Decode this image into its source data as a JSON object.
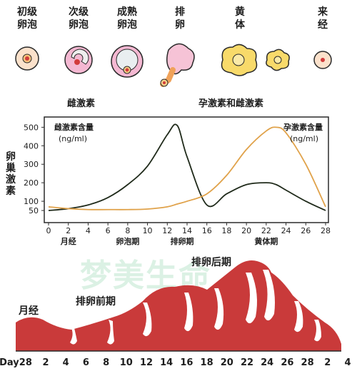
{
  "stages": [
    {
      "label": "初级\n卵泡",
      "icon": "primary-follicle-icon"
    },
    {
      "label": "次级\n卵泡",
      "icon": "secondary-follicle-icon"
    },
    {
      "label": "成熟\n卵泡",
      "icon": "mature-follicle-icon"
    },
    {
      "label": "排\n卵",
      "icon": "ovulation-icon"
    },
    {
      "label": "黄\n体",
      "icon": "corpus-luteum-icon"
    },
    {
      "label": "来\n经",
      "icon": "menstruation-cell-icon"
    }
  ],
  "hormone_labels": {
    "left": "雌激素",
    "right": "孕激素和雌激素"
  },
  "y_axis_label": "卵\n巢\n激\n素",
  "chart_data": {
    "type": "line",
    "x": [
      0,
      2,
      4,
      6,
      8,
      10,
      12,
      13,
      14,
      16,
      18,
      20,
      22,
      23,
      24,
      26,
      28
    ],
    "xticks": [
      0,
      2,
      4,
      6,
      8,
      10,
      12,
      14,
      16,
      18,
      20,
      22,
      24,
      26,
      28
    ],
    "yticks": [
      50,
      100,
      200,
      300,
      400,
      500
    ],
    "xlim": [
      0,
      28
    ],
    "ylim": [
      0,
      540
    ],
    "series": [
      {
        "name": "雌激素含量",
        "unit": "(ng/ml)",
        "color": "#1f2a1a",
        "values": [
          50,
          60,
          80,
          120,
          190,
          290,
          460,
          510,
          340,
          80,
          140,
          190,
          200,
          190,
          160,
          100,
          50
        ]
      },
      {
        "name": "孕激素含量",
        "unit": "(ng/ml)",
        "color": "#e0a24a",
        "values": [
          70,
          60,
          55,
          55,
          55,
          58,
          70,
          85,
          100,
          140,
          240,
          380,
          480,
          500,
          470,
          300,
          70
        ]
      }
    ],
    "phase_labels": [
      {
        "text": "月经",
        "x": 2
      },
      {
        "text": "卵泡期",
        "x": 8
      },
      {
        "text": "排卵期",
        "x": 13.5
      },
      {
        "text": "黄体期",
        "x": 22
      }
    ]
  },
  "endometrium": {
    "color": "#c93a3a",
    "labels": {
      "menstruation": "月经",
      "pre_ovulation": "排卵前期",
      "post_ovulation": "排卵后期"
    },
    "axis_start": "Day28",
    "day_ticks": [
      "2",
      "4",
      "6",
      "8",
      "10",
      "12",
      "14",
      "16",
      "18",
      "20",
      "22",
      "24",
      "26",
      "28",
      "2",
      "4"
    ]
  },
  "watermark": "梦美生命"
}
